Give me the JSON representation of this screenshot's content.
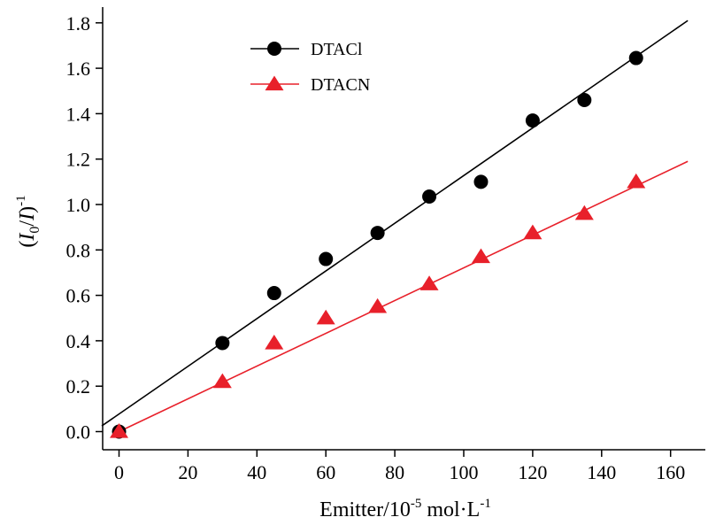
{
  "chart_data": {
    "type": "scatter",
    "xlabel": {
      "main": "Emitter/10",
      "sup1": "-5",
      "unit": " mol·L",
      "sup2": "-1"
    },
    "ylabel": {
      "open": "(",
      "i0": "I",
      "sub": "0",
      "slash": "/",
      "i": "I",
      "close": ")",
      "sup": "-1"
    },
    "xlim": [
      -5,
      168
    ],
    "ylim": [
      -0.03,
      1.9
    ],
    "xticks": [
      0,
      20,
      40,
      60,
      80,
      100,
      120,
      140,
      160
    ],
    "yticks": [
      "0.0",
      "0.2",
      "0.4",
      "0.6",
      "0.8",
      "1.0",
      "1.2",
      "1.4",
      "1.6",
      "1.8"
    ],
    "grid": false,
    "legend_position": "top-left",
    "series": [
      {
        "name": "DTACl",
        "marker": "circle",
        "color": "#000000",
        "x": [
          0,
          30,
          45,
          60,
          75,
          90,
          105,
          120,
          135,
          150
        ],
        "y": [
          0.0,
          0.39,
          0.61,
          0.76,
          0.875,
          1.035,
          1.1,
          1.37,
          1.46,
          1.645
        ],
        "fit": {
          "x": [
            -5,
            165
          ],
          "y": [
            0.025,
            1.81
          ]
        }
      },
      {
        "name": "DTACN",
        "marker": "triangle",
        "color": "#e8202a",
        "x": [
          0,
          30,
          45,
          60,
          75,
          90,
          105,
          120,
          135,
          150
        ],
        "y": [
          0.0,
          0.22,
          0.39,
          0.5,
          0.55,
          0.65,
          0.77,
          0.875,
          0.96,
          1.1
        ],
        "fit": {
          "x": [
            0,
            165
          ],
          "y": [
            0.0,
            1.19
          ]
        }
      }
    ]
  }
}
